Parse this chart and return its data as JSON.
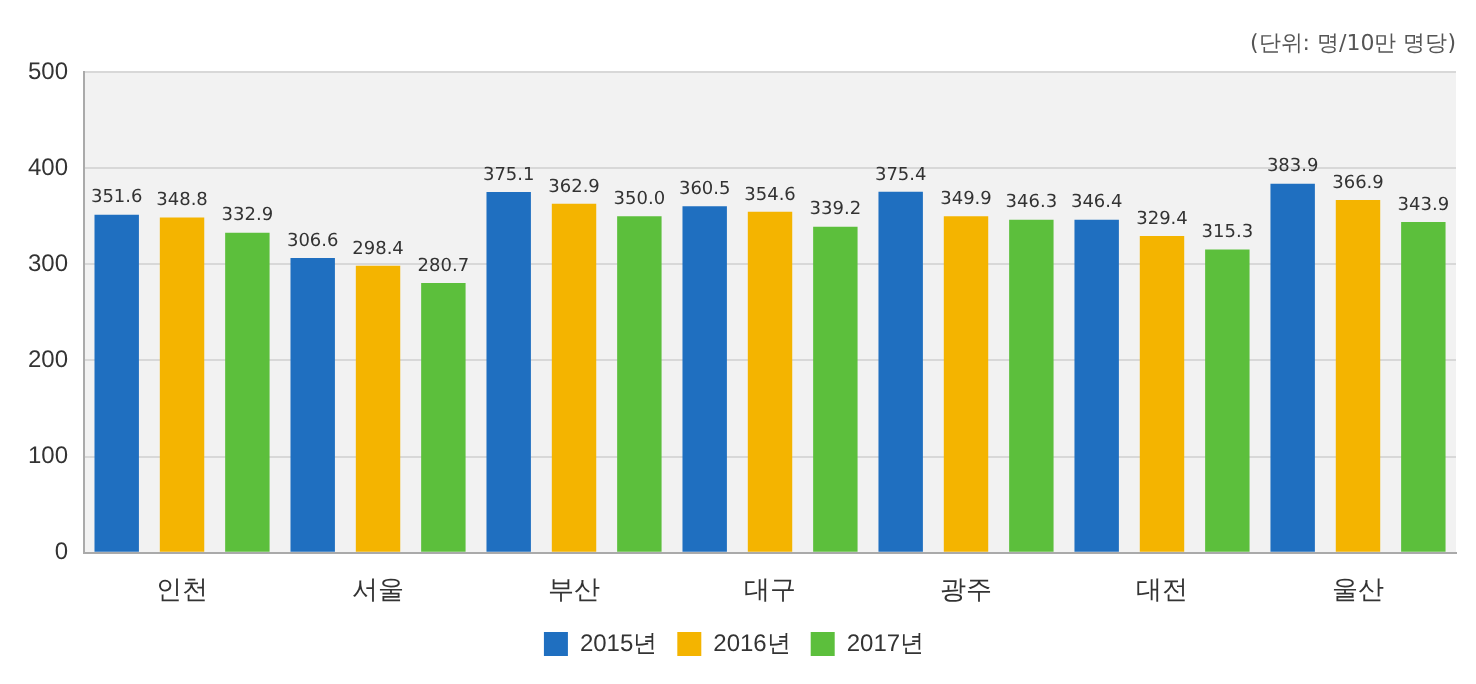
{
  "chart_data": {
    "type": "bar",
    "annotations": [
      "(단위: 명/10만 명당)"
    ],
    "categories": [
      "인천",
      "서울",
      "부산",
      "대구",
      "광주",
      "대전",
      "울산"
    ],
    "series": [
      {
        "name": "2015년",
        "color": "#1f6fc0",
        "values": [
          351.6,
          306.6,
          375.1,
          360.5,
          375.4,
          346.4,
          383.9
        ],
        "value_labels": [
          "351.6",
          "306.6",
          "375.1",
          "360.5",
          "375.4",
          "346.4",
          "383.9"
        ]
      },
      {
        "name": "2016년",
        "color": "#f4b400",
        "values": [
          348.8,
          298.4,
          362.9,
          354.6,
          349.9,
          329.4,
          366.9
        ],
        "value_labels": [
          "348.8",
          "298.4",
          "362.9",
          "354.6",
          "349.9",
          "329.4",
          "366.9"
        ]
      },
      {
        "name": "2017년",
        "color": "#5cbf3c",
        "values": [
          332.9,
          280.7,
          350,
          339.2,
          346.3,
          315.3,
          343.9
        ],
        "value_labels": [
          "332.9",
          "280.7",
          "350.0",
          "339.2",
          "346.3",
          "315.3",
          "343.9"
        ]
      }
    ],
    "ylim": [
      0,
      500
    ],
    "yticks": [
      0,
      100,
      200,
      300,
      400,
      500
    ],
    "grid": "y",
    "legend": "bottom"
  }
}
